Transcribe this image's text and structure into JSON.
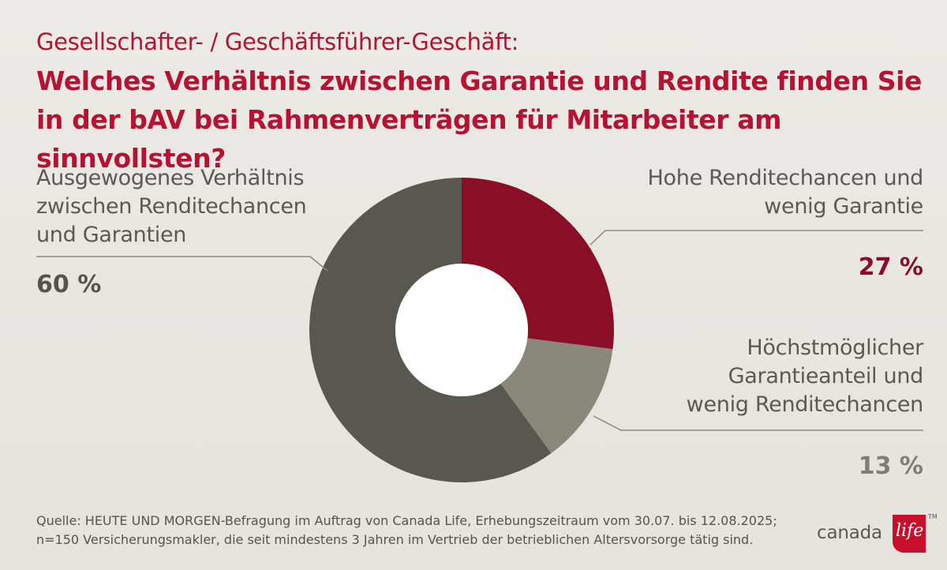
{
  "header": {
    "subtitle": "Gesellschafter- / Geschäftsführer-Geschäft:",
    "title": "Welches Verhältnis zwischen Garantie und Rendite finden Sie in der bAV bei Rahmenverträgen für Mitarbeiter am sinnvollsten?"
  },
  "labels": {
    "balanced": [
      "Ausgewogenes Verhältnis",
      "zwischen Renditechancen",
      "und Garantien"
    ],
    "balanced_pct": "60 %",
    "high_return": [
      "Hohe Renditechancen und",
      "wenig Garantie"
    ],
    "high_return_pct": "27 %",
    "max_guarantee": [
      "Höchstmöglicher",
      "Garantieanteil und",
      "wenig Renditechancen"
    ],
    "max_guarantee_pct": "13 %"
  },
  "chart_data": {
    "type": "pie",
    "donut": true,
    "title": "Welches Verhältnis zwischen Garantie und Rendite finden Sie in der bAV bei Rahmenverträgen für Mitarbeiter am sinnvollsten?",
    "categories": [
      "Hohe Renditechancen und wenig Garantie",
      "Höchstmöglicher Garantieanteil und wenig Renditechancen",
      "Ausgewogenes Verhältnis zwischen Renditechancen und Garantien"
    ],
    "values": [
      27,
      13,
      60
    ],
    "colors": [
      "#8b0e27",
      "#8a887a",
      "#595850"
    ],
    "unit": "%"
  },
  "footer": {
    "source_line1": "Quelle: HEUTE UND MORGEN-Befragung im Auftrag von Canada Life, Erhebungszeitraum vom 30.07. bis 12.08.2025;",
    "source_line2": "n=150 Versicherungsmakler, die seit mindestens 3 Jahren im Vertrieb der betrieblichen Altersvorsorge tätig sind."
  },
  "logo": {
    "brand": "canada",
    "brand_script": "life",
    "tm": "TM"
  }
}
